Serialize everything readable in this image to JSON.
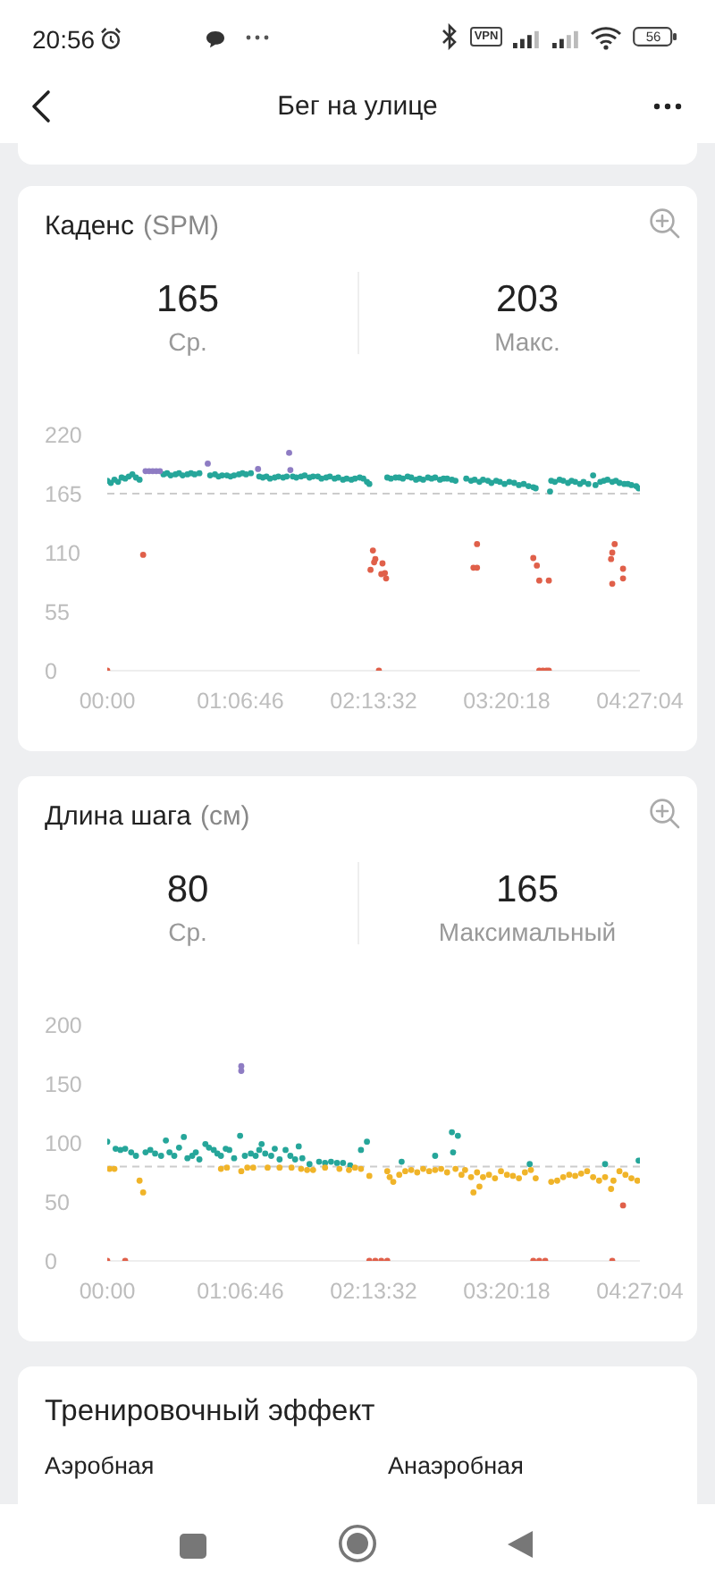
{
  "chart_data": [
    {
      "type": "other",
      "title": "Бег на улице",
      "annotations": [
        "20:56",
        "VPN",
        "56"
      ]
    },
    {
      "type": "scatter",
      "title": "Каденс",
      "subtitle": "(SPM)",
      "annotations": [
        "165",
        "Ср.",
        "203",
        "Макс."
      ],
      "xlim": [
        0,
        4.4511
      ],
      "xticks": [
        {
          "value": 0,
          "label": "00:00"
        },
        {
          "value": 1.1128,
          "label": "01:06:46"
        },
        {
          "value": 2.2256,
          "label": "02:13:32"
        },
        {
          "value": 3.3383,
          "label": "03:20:18"
        },
        {
          "value": 4.4511,
          "label": "04:27:04"
        }
      ],
      "ylim": [
        0,
        220
      ],
      "yticks": [
        0,
        55,
        110,
        165,
        220
      ],
      "marker": "circle",
      "ref_lines": [
        {
          "axis": "y",
          "value": 165,
          "color": "#cccccc",
          "line_style": "dashed"
        }
      ],
      "series": [
        {
          "color": "#26a69a",
          "x": [
            0,
            0.03,
            0.06,
            0.09,
            0.12,
            0.15,
            0.18,
            0.21,
            0.24,
            0.27,
            0.47,
            0.5,
            0.53,
            0.57,
            0.6,
            0.63,
            0.67,
            0.7,
            0.73,
            0.77,
            0.86,
            0.9,
            0.93,
            0.96,
            1,
            1.03,
            1.06,
            1.1,
            1.13,
            1.16,
            1.2,
            1.27,
            1.3,
            1.33,
            1.36,
            1.4,
            1.43,
            1.47,
            1.5,
            1.55,
            1.58,
            1.62,
            1.65,
            1.69,
            1.72,
            1.76,
            1.79,
            1.83,
            1.86,
            1.9,
            1.93,
            1.97,
            2,
            2.04,
            2.07,
            2.11,
            2.14,
            2.17,
            2.19,
            2.34,
            2.37,
            2.41,
            2.44,
            2.47,
            2.51,
            2.54,
            2.58,
            2.61,
            2.64,
            2.68,
            2.71,
            2.74,
            2.78,
            2.81,
            2.84,
            2.88,
            2.91,
            3,
            3.04,
            3.07,
            3.11,
            3.14,
            3.18,
            3.21,
            3.25,
            3.28,
            3.32,
            3.36,
            3.4,
            3.44,
            3.48,
            3.52,
            3.56,
            3.58,
            3.7,
            3.71,
            3.74,
            3.78,
            3.81,
            3.85,
            3.88,
            3.91,
            3.95,
            3.98,
            4.02,
            4.06,
            4.08,
            4.12,
            4.15,
            4.18,
            4.22,
            4.25,
            4.28,
            4.32,
            4.35,
            4.38,
            4.42,
            4.44
          ],
          "values": [
            177,
            175,
            178,
            176,
            180,
            179,
            181,
            183,
            180,
            178,
            183,
            184,
            182,
            183,
            184,
            182,
            183,
            184,
            183,
            184,
            182,
            183,
            181,
            182,
            182,
            181,
            182,
            183,
            184,
            183,
            184,
            181,
            180,
            181,
            179,
            180,
            181,
            180,
            181,
            181,
            180,
            181,
            182,
            180,
            181,
            181,
            179,
            180,
            181,
            179,
            180,
            178,
            179,
            178,
            179,
            180,
            179,
            176,
            174,
            180,
            179,
            180,
            180,
            179,
            181,
            180,
            178,
            179,
            178,
            180,
            179,
            180,
            178,
            179,
            179,
            178,
            177,
            179,
            177,
            178,
            176,
            178,
            177,
            175,
            177,
            176,
            174,
            176,
            175,
            173,
            174,
            172,
            171,
            170,
            167,
            177,
            176,
            178,
            177,
            175,
            177,
            176,
            174,
            176,
            174,
            182,
            173,
            176,
            177,
            178,
            176,
            177,
            175,
            174,
            174,
            173,
            172,
            170
          ]
        },
        {
          "color": "#8e7cc3",
          "x": [
            0.32,
            0.35,
            0.38,
            0.41,
            0.44,
            0.84,
            1.26,
            1.52,
            1.53
          ],
          "values": [
            186,
            186,
            186,
            186,
            186,
            193,
            188,
            203,
            187
          ]
        },
        {
          "color": "#e0604a",
          "x": [
            0,
            0.3,
            2.2,
            2.22,
            2.23,
            2.24,
            2.27,
            2.29,
            2.3,
            2.32,
            2.33,
            3.06,
            3.09,
            3.09,
            3.56,
            3.59,
            3.61,
            3.61,
            3.64,
            3.67,
            3.69,
            3.69,
            4.21,
            4.22,
            4.22,
            4.24,
            4.31,
            4.31
          ],
          "values": [
            0,
            108,
            94,
            112,
            101,
            104,
            0,
            90,
            100,
            91,
            86,
            96,
            96,
            118,
            105,
            98,
            84,
            0,
            0,
            0,
            0,
            84,
            104,
            110,
            81,
            118,
            95,
            86
          ]
        }
      ]
    },
    {
      "type": "scatter",
      "title": "Длина шага",
      "subtitle": "(см)",
      "annotations": [
        "80",
        "Ср.",
        "165",
        "Максимальный"
      ],
      "xlim": [
        0,
        4.4511
      ],
      "xticks": [
        {
          "value": 0,
          "label": "00:00"
        },
        {
          "value": 1.1128,
          "label": "01:06:46"
        },
        {
          "value": 2.2256,
          "label": "02:13:32"
        },
        {
          "value": 3.3383,
          "label": "03:20:18"
        },
        {
          "value": 4.4511,
          "label": "04:27:04"
        }
      ],
      "ylim": [
        0,
        200
      ],
      "yticks": [
        0,
        50,
        100,
        150,
        200
      ],
      "marker": "circle",
      "ref_lines": [
        {
          "axis": "y",
          "value": 80,
          "color": "#cccccc",
          "line_style": "dashed"
        }
      ],
      "series": [
        {
          "color": "#26a69a",
          "x": [
            0,
            0.07,
            0.11,
            0.15,
            0.2,
            0.24,
            0.32,
            0.36,
            0.4,
            0.45,
            0.49,
            0.52,
            0.56,
            0.6,
            0.64,
            0.67,
            0.71,
            0.74,
            0.77,
            0.82,
            0.85,
            0.89,
            0.92,
            0.95,
            0.99,
            1.02,
            1.06,
            1.11,
            1.15,
            1.2,
            1.24,
            1.27,
            1.29,
            1.32,
            1.37,
            1.4,
            1.44,
            1.49,
            1.53,
            1.57,
            1.6,
            1.63,
            1.69,
            1.77,
            1.82,
            1.87,
            1.92,
            1.97,
            2.03,
            2.12,
            2.17,
            2.46,
            2.74,
            2.88,
            2.89,
            2.93,
            3.53,
            4.16,
            4.44
          ],
          "values": [
            101,
            95,
            94,
            95,
            92,
            89,
            92,
            94,
            91,
            89,
            102,
            92,
            89,
            96,
            105,
            87,
            89,
            92,
            86,
            99,
            96,
            94,
            91,
            89,
            95,
            94,
            87,
            106,
            89,
            91,
            89,
            94,
            99,
            91,
            89,
            95,
            86,
            94,
            89,
            86,
            97,
            87,
            82,
            84,
            83,
            84,
            83,
            83,
            81,
            94,
            101,
            84,
            89,
            109,
            92,
            106,
            82,
            82,
            85
          ]
        },
        {
          "color": "#f0b429",
          "x": [
            0.02,
            0.06,
            0.27,
            0.3,
            0.95,
            1,
            1.12,
            1.17,
            1.22,
            1.34,
            1.44,
            1.54,
            1.62,
            1.67,
            1.72,
            1.82,
            1.94,
            2.02,
            2.07,
            2.12,
            2.19,
            2.34,
            2.36,
            2.39,
            2.44,
            2.49,
            2.54,
            2.59,
            2.64,
            2.69,
            2.74,
            2.79,
            2.84,
            2.91,
            2.96,
            2.99,
            3.04,
            3.06,
            3.09,
            3.11,
            3.14,
            3.19,
            3.24,
            3.29,
            3.34,
            3.39,
            3.44,
            3.49,
            3.54,
            3.58,
            3.71,
            3.76,
            3.81,
            3.86,
            3.91,
            3.96,
            4.01,
            4.06,
            4.11,
            4.16,
            4.21,
            4.23,
            4.28,
            4.33,
            4.38,
            4.43
          ],
          "values": [
            78,
            78,
            68,
            58,
            78,
            79,
            76,
            79,
            79,
            79,
            79,
            79,
            78,
            77,
            77,
            79,
            78,
            77,
            79,
            78,
            72,
            76,
            71,
            67,
            73,
            76,
            77,
            75,
            78,
            76,
            77,
            78,
            75,
            78,
            73,
            77,
            71,
            58,
            75,
            63,
            71,
            73,
            70,
            76,
            73,
            72,
            70,
            75,
            77,
            70,
            67,
            68,
            71,
            73,
            72,
            74,
            76,
            71,
            68,
            71,
            61,
            68,
            76,
            73,
            70,
            68
          ]
        },
        {
          "color": "#e0604a",
          "x": [
            0,
            0.15,
            2.19,
            2.24,
            2.29,
            2.34,
            3.56,
            3.61,
            3.66,
            4.22,
            4.31
          ],
          "values": [
            0,
            0,
            0,
            0,
            0,
            0,
            0,
            0,
            0,
            0,
            47
          ]
        },
        {
          "color": "#8e7cc3",
          "x": [
            1.12,
            1.12
          ],
          "values": [
            165,
            161
          ]
        }
      ]
    },
    {
      "type": "other",
      "title": "Тренировочный эффект",
      "annotations": [
        "Аэробная",
        "Анаэробная"
      ]
    }
  ]
}
